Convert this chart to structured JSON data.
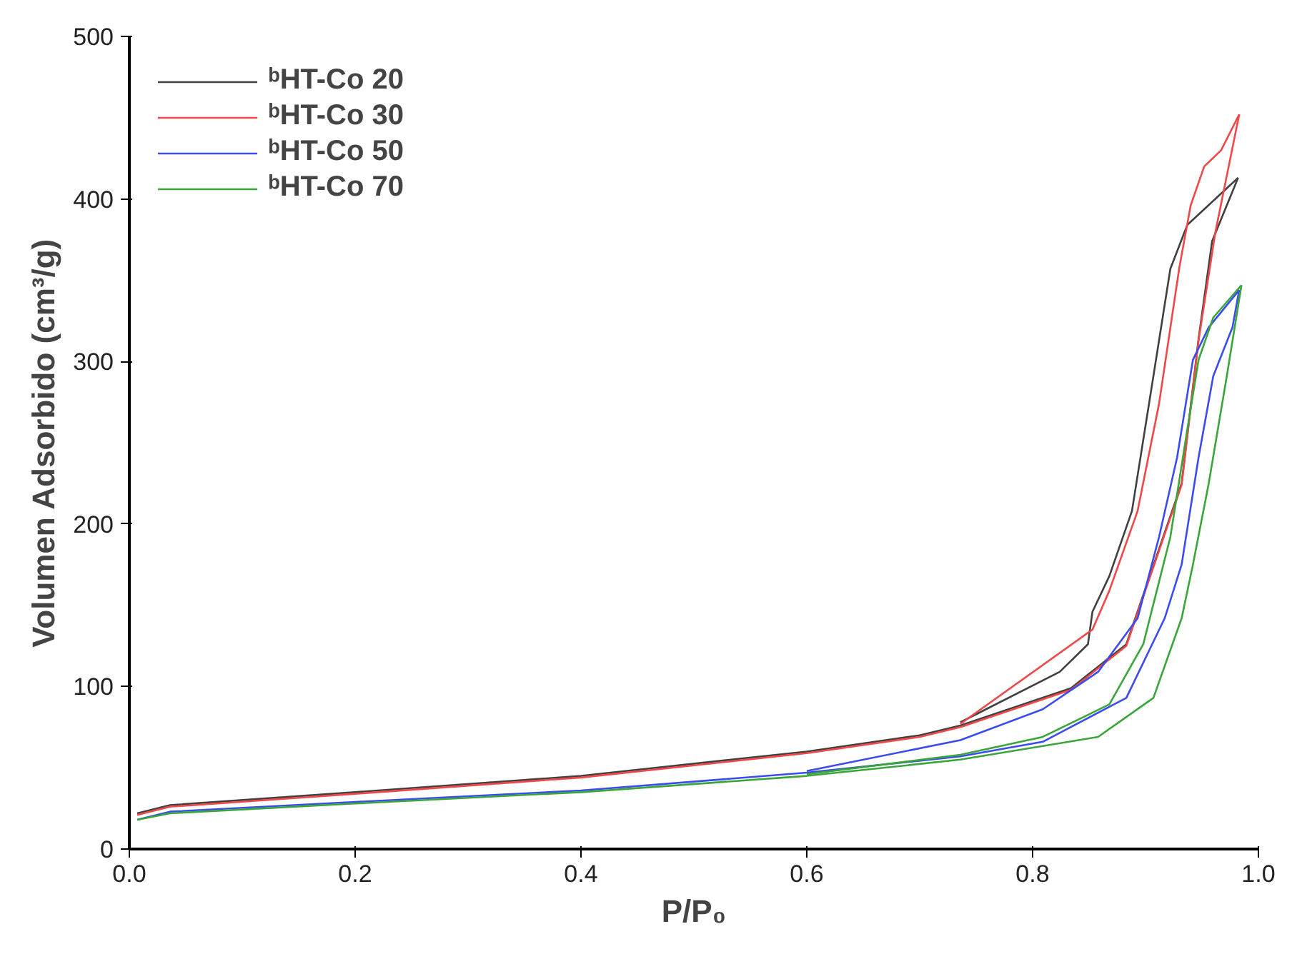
{
  "chart_data": {
    "type": "line",
    "xlabel": "P/P₀",
    "ylabel": "Volumen Adsorbido (cm³/g)",
    "xlim": [
      0.0,
      1.0
    ],
    "ylim": [
      0,
      500
    ],
    "xticks": [
      {
        "value": 0.0,
        "label": "0.0"
      },
      0.2,
      0.4,
      0.6,
      0.8,
      {
        "value": 1.0,
        "label": "1.0"
      }
    ],
    "yticks": [
      0,
      100,
      200,
      300,
      400,
      500
    ],
    "grid": false,
    "legend": "top left",
    "line_style": "solid",
    "marker": "none",
    "series": [
      {
        "name": "ᵇHT-Co 20",
        "color": "#404040",
        "x": [
          0.007,
          0.036,
          0.2,
          0.4,
          0.6,
          0.7,
          0.736,
          0.834,
          0.883,
          0.932,
          0.947,
          0.959,
          0.982
        ],
        "values": [
          22,
          27,
          35,
          45,
          60,
          70,
          76,
          99,
          126,
          225,
          314,
          374,
          413
        ]
      },
      {
        "color": "#404040",
        "x": [
          0.736,
          0.824,
          0.849,
          0.853,
          0.868,
          0.888,
          0.907,
          0.922,
          0.937,
          0.982
        ],
        "values": [
          78,
          109,
          126,
          146,
          168,
          208,
          291,
          357,
          384,
          413
        ]
      },
      {
        "name": "ᵇHT-Co 30",
        "color": "#f04848",
        "x": [
          0.007,
          0.036,
          0.2,
          0.4,
          0.6,
          0.7,
          0.736,
          0.834,
          0.883,
          0.932,
          0.947,
          0.962,
          0.983
        ],
        "values": [
          21,
          26,
          34,
          44,
          59,
          69,
          75,
          98,
          125,
          224,
          313,
          380,
          452
        ]
      },
      {
        "color": "#f04848",
        "x": [
          0.736,
          0.853,
          0.868,
          0.893,
          0.912,
          0.93,
          0.94,
          0.952,
          0.967,
          0.983
        ],
        "values": [
          77,
          135,
          159,
          208,
          274,
          358,
          396,
          420,
          430,
          452
        ]
      },
      {
        "name": "ᵇHT-Co 50",
        "color": "#3a4cf0",
        "x": [
          0.007,
          0.036,
          0.2,
          0.4,
          0.6,
          0.736,
          0.809,
          0.883,
          0.917,
          0.932,
          0.947,
          0.96,
          0.977,
          0.983
        ],
        "values": [
          18,
          23,
          29,
          36,
          47,
          57,
          66,
          93,
          142,
          175,
          241,
          291,
          321,
          344
        ]
      },
      {
        "color": "#3a4cf0",
        "x": [
          0.6,
          0.736,
          0.809,
          0.858,
          0.893,
          0.912,
          0.928,
          0.942,
          0.956,
          0.983
        ],
        "values": [
          48,
          67,
          86,
          109,
          142,
          192,
          241,
          301,
          321,
          344
        ]
      },
      {
        "name": "ᵇHT-Co 70",
        "color": "#3aa63a",
        "x": [
          0.007,
          0.036,
          0.2,
          0.4,
          0.6,
          0.736,
          0.858,
          0.907,
          0.932,
          0.942,
          0.956,
          0.972,
          0.985
        ],
        "values": [
          18,
          22,
          28,
          35,
          45,
          55,
          69,
          93,
          142,
          175,
          225,
          291,
          347
        ]
      },
      {
        "color": "#3aa63a",
        "x": [
          0.6,
          0.736,
          0.809,
          0.868,
          0.898,
          0.922,
          0.937,
          0.947,
          0.96,
          0.985
        ],
        "values": [
          46,
          58,
          69,
          89,
          126,
          192,
          258,
          301,
          327,
          347
        ]
      }
    ]
  }
}
